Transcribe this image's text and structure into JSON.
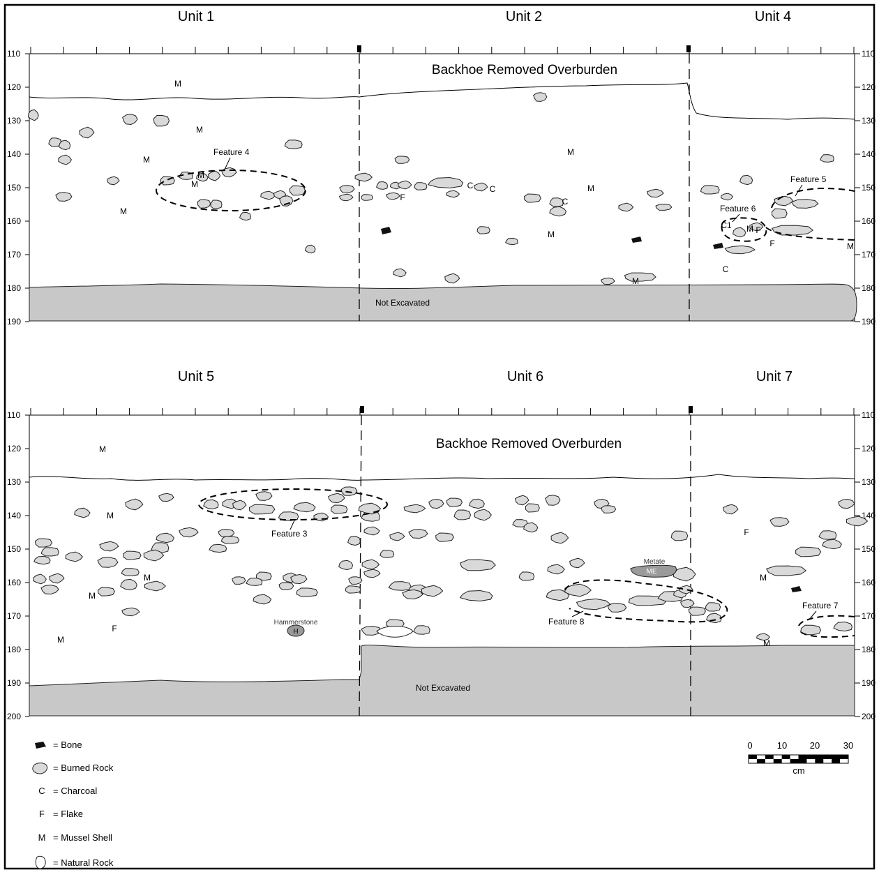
{
  "panels": [
    {
      "units": [
        "Unit 1",
        "Unit 2",
        "Unit 4"
      ],
      "overburden_label": "Backhoe Removed Overburden",
      "not_excavated_label": "Not Excavated",
      "depth_ticks": [
        "110",
        "120",
        "130",
        "140",
        "150",
        "160",
        "170",
        "180",
        "190"
      ],
      "features": [
        "Feature 4",
        "Feature 5",
        "Feature 6"
      ],
      "symbols": [
        {
          "t": "M"
        },
        {
          "t": "M"
        },
        {
          "t": "M"
        },
        {
          "t": "M"
        },
        {
          "t": "M"
        },
        {
          "t": "M"
        },
        {
          "t": "M"
        },
        {
          "t": "M"
        },
        {
          "t": "M"
        },
        {
          "t": "M"
        },
        {
          "t": "M"
        },
        {
          "t": "M"
        },
        {
          "t": "C"
        },
        {
          "t": "C"
        },
        {
          "t": "C"
        },
        {
          "t": "C"
        },
        {
          "t": "C1"
        },
        {
          "t": "F"
        },
        {
          "t": "F"
        },
        {
          "t": "F"
        }
      ]
    },
    {
      "units": [
        "Unit 5",
        "Unit 6",
        "Unit 7"
      ],
      "overburden_label": "Backhoe Removed Overburden",
      "not_excavated_label": "Not Excavated",
      "depth_ticks": [
        "110",
        "120",
        "130",
        "140",
        "150",
        "160",
        "170",
        "180",
        "190",
        "200"
      ],
      "features": [
        "Feature 3",
        "Feature 8",
        "Feature 7"
      ],
      "artifacts": [
        {
          "label": "Hammerstone",
          "code": "H"
        },
        {
          "label": "Metate",
          "code": "ME"
        }
      ],
      "symbols": [
        {
          "t": "M"
        },
        {
          "t": "M"
        },
        {
          "t": "M"
        },
        {
          "t": "M"
        },
        {
          "t": "M"
        },
        {
          "t": "M"
        },
        {
          "t": "M"
        },
        {
          "t": "F"
        },
        {
          "t": "F"
        }
      ]
    }
  ],
  "legend": [
    {
      "icon": "bone",
      "label": "= Bone"
    },
    {
      "icon": "burned-rock",
      "label": "= Burned Rock"
    },
    {
      "icon": "C",
      "label": "= Charcoal"
    },
    {
      "icon": "F",
      "label": "= Flake"
    },
    {
      "icon": "M",
      "label": "= Mussel Shell"
    },
    {
      "icon": "natural-rock",
      "label": "= Natural Rock"
    }
  ],
  "scale_bar": {
    "ticks": [
      "0",
      "10",
      "20",
      "30"
    ],
    "unit": "cm"
  },
  "colors": {
    "burned_rock": "#d9d9d9",
    "not_excavated": "#c8c8c8",
    "artifact": "#9a9a9a"
  }
}
